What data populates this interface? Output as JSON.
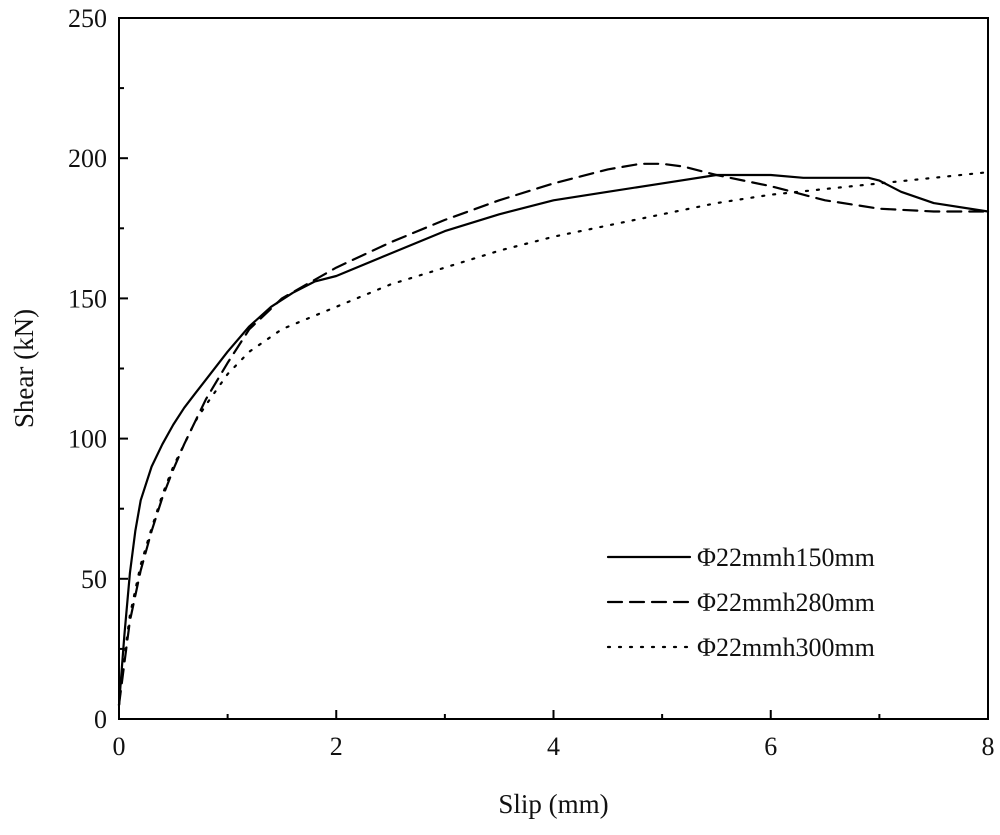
{
  "chart_data": {
    "type": "line",
    "title": "",
    "xlabel": "Slip (mm)",
    "ylabel": "Shear (kN)",
    "xlim": [
      0,
      8
    ],
    "ylim": [
      0,
      250
    ],
    "xticks": [
      0,
      2,
      4,
      6,
      8
    ],
    "yticks": [
      0,
      50,
      100,
      150,
      200,
      250
    ],
    "xtick_labels": [
      "0",
      "2",
      "4",
      "6",
      "8"
    ],
    "ytick_labels": [
      "0",
      "50",
      "100",
      "150",
      "200",
      "250"
    ],
    "grid": false,
    "legend_position": "bottom-right",
    "series": [
      {
        "name": "Φ22mmh150mm",
        "line_style": "solid",
        "color": "#000000",
        "x": [
          0,
          0.05,
          0.1,
          0.15,
          0.2,
          0.3,
          0.4,
          0.5,
          0.6,
          0.7,
          0.8,
          1.0,
          1.2,
          1.4,
          1.6,
          1.8,
          2.0,
          2.5,
          3.0,
          3.5,
          4.0,
          4.5,
          5.0,
          5.5,
          5.8,
          6.0,
          6.3,
          6.6,
          6.9,
          7.0,
          7.2,
          7.5,
          8.0
        ],
        "y": [
          5,
          30,
          52,
          67,
          78,
          90,
          98,
          105,
          111,
          116,
          121,
          131,
          140,
          147,
          152,
          156,
          158,
          166,
          174,
          180,
          185,
          188,
          191,
          194,
          194,
          194,
          193,
          193,
          193,
          192,
          188,
          184,
          181
        ]
      },
      {
        "name": "Φ22mmh280mm",
        "line_style": "dashed",
        "color": "#000000",
        "x": [
          0,
          0.05,
          0.1,
          0.2,
          0.3,
          0.4,
          0.5,
          0.6,
          0.7,
          0.8,
          1.0,
          1.2,
          1.5,
          2.0,
          2.5,
          3.0,
          3.5,
          4.0,
          4.5,
          4.8,
          5.0,
          5.2,
          5.5,
          6.0,
          6.5,
          7.0,
          7.5,
          8.0
        ],
        "y": [
          5,
          20,
          35,
          53,
          67,
          79,
          89,
          98,
          106,
          114,
          127,
          139,
          150,
          161,
          170,
          178,
          185,
          191,
          196,
          198,
          198,
          197,
          194,
          190,
          185,
          182,
          181,
          181
        ]
      },
      {
        "name": "Φ22mmh300mm",
        "line_style": "dotted",
        "color": "#000000",
        "x": [
          0,
          0.05,
          0.1,
          0.2,
          0.3,
          0.4,
          0.5,
          0.6,
          0.7,
          0.8,
          1.0,
          1.2,
          1.5,
          2.0,
          2.5,
          3.0,
          3.5,
          4.0,
          4.5,
          5.0,
          5.5,
          6.0,
          6.5,
          7.0,
          7.5,
          8.0
        ],
        "y": [
          5,
          22,
          37,
          55,
          68,
          80,
          90,
          98,
          106,
          112,
          123,
          131,
          139,
          147,
          155,
          161,
          167,
          172,
          176,
          180,
          184,
          187,
          189,
          191,
          193,
          195
        ]
      }
    ]
  },
  "style": {
    "axis_color": "#000000",
    "background": "#ffffff"
  }
}
